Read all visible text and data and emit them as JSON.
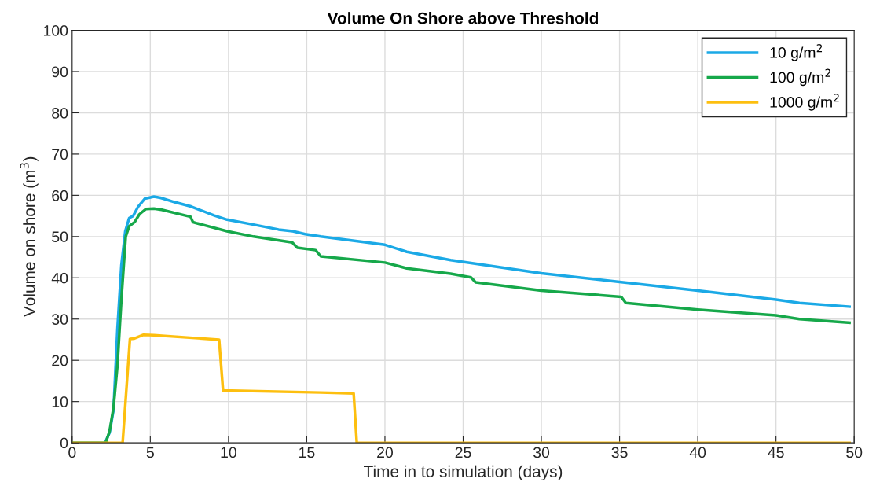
{
  "chart_data": {
    "type": "line",
    "title": "Volume On Shore above Threshold",
    "xlabel": "Time in to simulation (days)",
    "ylabel": "Volume on shore (m$^{3}$)",
    "xlim": [
      0,
      50
    ],
    "ylim": [
      0,
      100
    ],
    "xticks": [
      0,
      5,
      10,
      15,
      20,
      25,
      30,
      35,
      40,
      45,
      50
    ],
    "yticks": [
      0,
      10,
      20,
      30,
      40,
      50,
      60,
      70,
      80,
      90,
      100
    ],
    "grid": true,
    "legend": "top right",
    "marker": "none",
    "line_style": "solid",
    "series": [
      {
        "name": "10 g/m$^{2}$",
        "color": "#1ba9e6",
        "x": [
          0,
          2.1,
          2.4,
          2.65,
          2.9,
          3.15,
          3.4,
          3.65,
          3.9,
          4.23,
          4.65,
          4.9,
          5.23,
          5.65,
          6.6,
          7.6,
          9.1,
          9.9,
          11.6,
          13.2,
          14.1,
          14.9,
          15.9,
          20,
          21.4,
          24.2,
          30,
          35,
          40,
          45,
          46.5,
          49.7
        ],
        "values": [
          0,
          0,
          2.5,
          8,
          27.7,
          43,
          51.3,
          54.5,
          55,
          57.3,
          59.2,
          59.4,
          59.7,
          59.4,
          58.3,
          57.3,
          55.1,
          54.1,
          52.9,
          51.7,
          51.3,
          50.6,
          50,
          48,
          46.3,
          44.3,
          41.1,
          39,
          36.9,
          34.7,
          33.9,
          33
        ]
      },
      {
        "name": "100 g/m$^{2}$",
        "color": "#16a84a",
        "x": [
          0,
          2.15,
          2.4,
          2.65,
          2.9,
          3.15,
          3.43,
          3.65,
          4.0,
          4.3,
          4.73,
          5.23,
          5.73,
          7.57,
          7.73,
          8.0,
          9.9,
          11.6,
          14.07,
          14.4,
          15.57,
          15.9,
          20,
          21.4,
          24.2,
          25.5,
          25.8,
          30,
          35.1,
          35.4,
          40,
          45,
          46.5,
          49.7
        ],
        "values": [
          0,
          0,
          2.9,
          8.6,
          18.8,
          34.7,
          50,
          52.5,
          53.5,
          55.4,
          56.7,
          56.8,
          56.5,
          54.8,
          53.5,
          53.2,
          51.3,
          50,
          48.6,
          47.3,
          46.7,
          45.2,
          43.7,
          42.3,
          41,
          40.1,
          38.9,
          36.9,
          35.4,
          33.9,
          32.3,
          30.9,
          30,
          29.1
        ]
      },
      {
        "name": "1000 g/m$^{2}$",
        "color": "#fdbf0f",
        "x": [
          0,
          3.23,
          3.7,
          3.98,
          4.57,
          5.23,
          9.4,
          9.65,
          15.9,
          18.0,
          18.2,
          49.7
        ],
        "values": [
          0,
          0,
          25.2,
          25.3,
          26.2,
          26.1,
          25,
          12.7,
          12.2,
          12,
          0,
          0
        ]
      }
    ]
  }
}
